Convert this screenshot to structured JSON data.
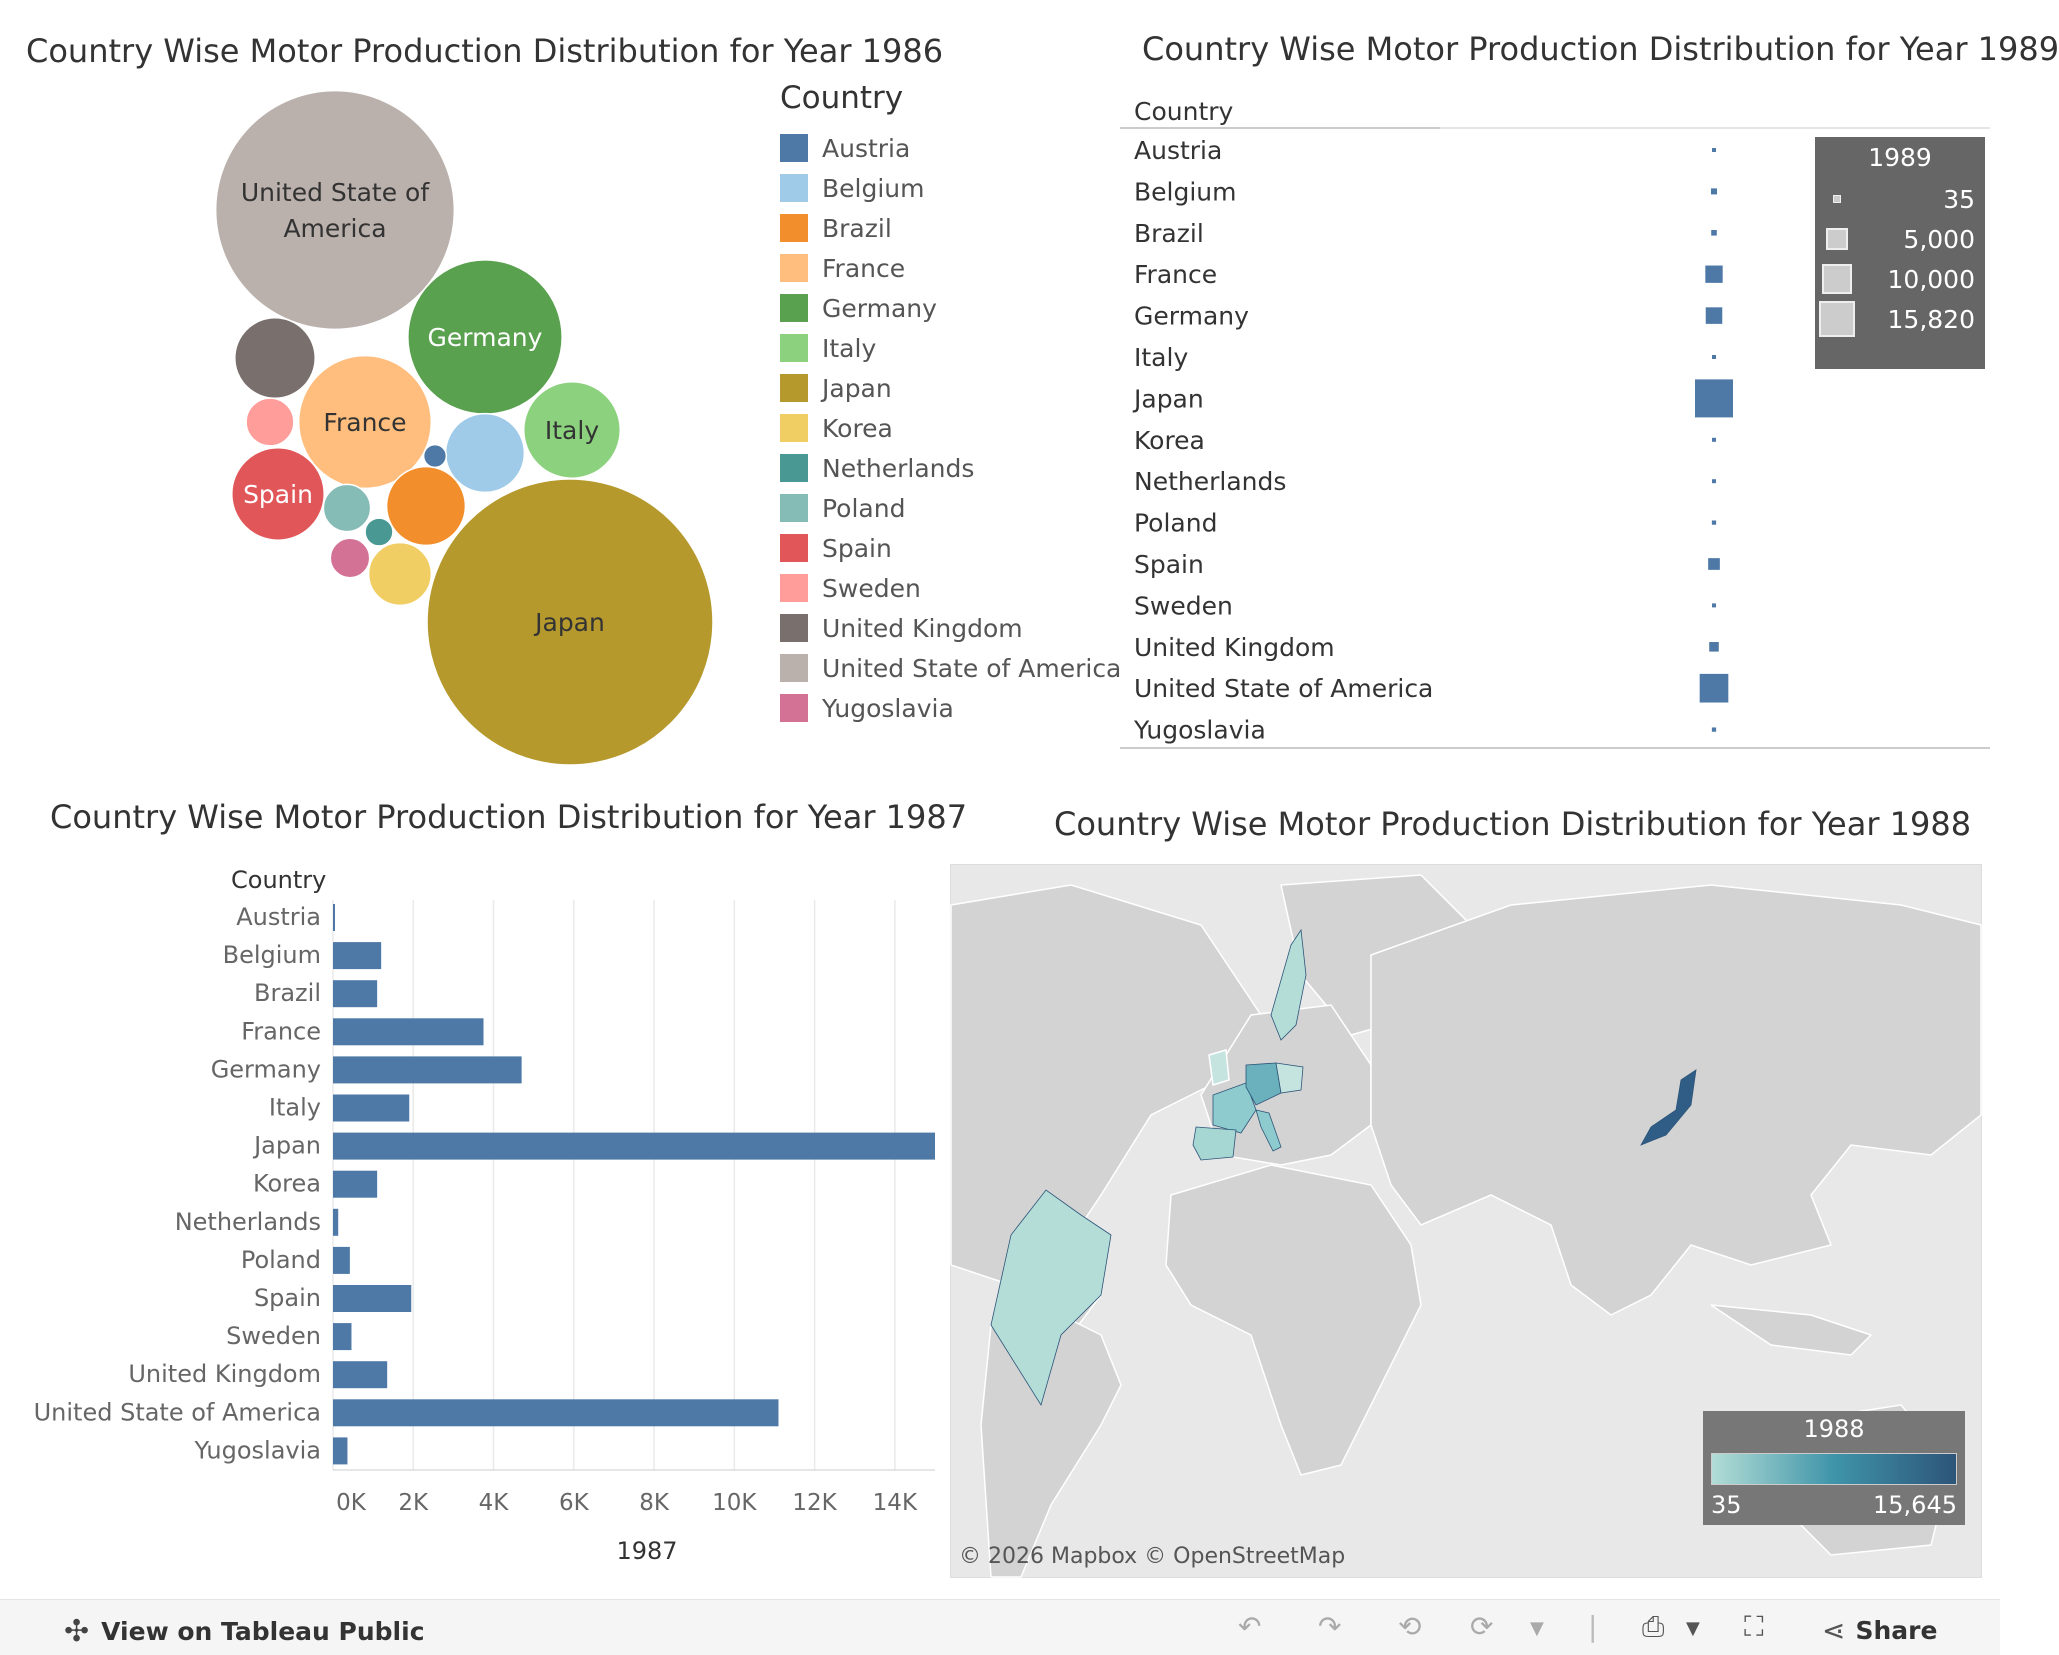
{
  "titles": {
    "t1986": "Country Wise Motor Production Distribution for Year 1986",
    "t1989": "Country Wise Motor Production Distribution for Year 1989",
    "t1987": "Country Wise Motor Production Distribution for Year 1987",
    "t1988": "Country Wise Motor Production Distribution for Year 1988"
  },
  "legend": {
    "title": "Country",
    "items": [
      {
        "label": "Austria",
        "color": "#4e79a7"
      },
      {
        "label": "Belgium",
        "color": "#a0cbe8"
      },
      {
        "label": "Brazil",
        "color": "#f28e2b"
      },
      {
        "label": "France",
        "color": "#ffbe7d"
      },
      {
        "label": "Germany",
        "color": "#59a14f"
      },
      {
        "label": "Italy",
        "color": "#8cd17d"
      },
      {
        "label": "Japan",
        "color": "#b6992d"
      },
      {
        "label": "Korea",
        "color": "#f1ce63"
      },
      {
        "label": "Netherlands",
        "color": "#499894"
      },
      {
        "label": "Poland",
        "color": "#86bcb6"
      },
      {
        "label": "Spain",
        "color": "#e15759"
      },
      {
        "label": "Sweden",
        "color": "#ff9d9a"
      },
      {
        "label": "United Kingdom",
        "color": "#79706e"
      },
      {
        "label": "United State of America",
        "color": "#bab0ac"
      },
      {
        "label": "Yugoslavia",
        "color": "#d37295"
      }
    ]
  },
  "chart_data": [
    {
      "type": "bubble",
      "title": "Country Wise Motor Production Distribution for Year 1986",
      "bubbles": [
        {
          "name": "United State of America",
          "label": "United State of\nAmerica",
          "value": 11000
        },
        {
          "name": "Japan",
          "label": "Japan",
          "value": 15800
        },
        {
          "name": "Germany",
          "label": "Germany",
          "value": 4600
        },
        {
          "name": "France",
          "label": "France",
          "value": 3400
        },
        {
          "name": "Italy",
          "label": "Italy",
          "value": 1800
        },
        {
          "name": "Spain",
          "label": "Spain",
          "value": 1650
        },
        {
          "name": "United Kingdom",
          "label": "",
          "value": 1250
        },
        {
          "name": "Belgium",
          "label": "",
          "value": 1200
        },
        {
          "name": "Brazil",
          "label": "",
          "value": 1200
        },
        {
          "name": "Korea",
          "label": "",
          "value": 760
        },
        {
          "name": "Poland",
          "label": "",
          "value": 430
        },
        {
          "name": "Sweden",
          "label": "",
          "value": 440
        },
        {
          "name": "Yugoslavia",
          "label": "",
          "value": 300
        },
        {
          "name": "Netherlands",
          "label": "",
          "value": 150
        },
        {
          "name": "Austria",
          "label": "",
          "value": 100
        }
      ]
    },
    {
      "type": "table",
      "title": "Country Wise Motor Production Distribution for Year 1989",
      "row_header": "Country",
      "rows": [
        {
          "name": "Austria",
          "value": 35
        },
        {
          "name": "Belgium",
          "value": 400
        },
        {
          "name": "Brazil",
          "value": 340
        },
        {
          "name": "France",
          "value": 3300
        },
        {
          "name": "Germany",
          "value": 3000
        },
        {
          "name": "Italy",
          "value": 80
        },
        {
          "name": "Japan",
          "value": 15820
        },
        {
          "name": "Korea",
          "value": 60
        },
        {
          "name": "Netherlands",
          "value": 60
        },
        {
          "name": "Poland",
          "value": 200
        },
        {
          "name": "Spain",
          "value": 1500
        },
        {
          "name": "Sweden",
          "value": 150
        },
        {
          "name": "United Kingdom",
          "value": 1000
        },
        {
          "name": "United State of America",
          "value": 9000
        },
        {
          "name": "Yugoslavia",
          "value": 200
        }
      ],
      "size_legend": {
        "title": "1989",
        "values": [
          "35",
          "5,000",
          "10,000",
          "15,820"
        ]
      }
    },
    {
      "type": "bar",
      "title": "Country Wise Motor Production Distribution for Year 1987",
      "row_header": "Country",
      "xlabel": "1987",
      "categories": [
        "Austria",
        "Belgium",
        "Brazil",
        "France",
        "Germany",
        "Italy",
        "Japan",
        "Korea",
        "Netherlands",
        "Poland",
        "Spain",
        "Sweden",
        "United Kingdom",
        "United State of America",
        "Yugoslavia"
      ],
      "values": [
        35,
        1200,
        1100,
        3750,
        4700,
        1900,
        15000,
        1100,
        130,
        420,
        1950,
        460,
        1350,
        11100,
        360
      ],
      "xlim": [
        0,
        15000
      ],
      "ticks": [
        "0K",
        "2K",
        "4K",
        "6K",
        "8K",
        "10K",
        "12K",
        "14K"
      ]
    },
    {
      "type": "map",
      "title": "Country Wise Motor Production Distribution for Year 1988",
      "color_legend": {
        "title": "1988",
        "min": "35",
        "max": "15,645"
      },
      "credit": "© 2026 Mapbox  © OpenStreetMap"
    }
  ],
  "footer": {
    "view_label": "View on Tableau Public",
    "share_label": "Share"
  }
}
